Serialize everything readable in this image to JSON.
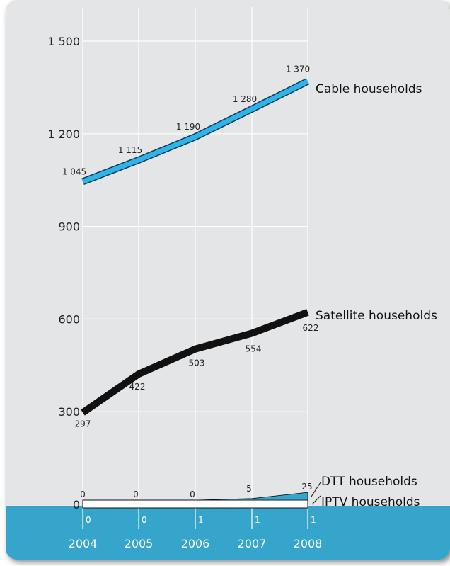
{
  "colors": {
    "background": "#e4e5e6",
    "footer_band": "#36a5cc",
    "cable": "#2fb3e8",
    "satellite": "#111111",
    "dtt": "#36a5cc",
    "iptv": "#ffffff",
    "grid": "#ffffff"
  },
  "chart_data": {
    "type": "line",
    "title": "",
    "xlabel": "",
    "ylabel": "",
    "x": [
      "2004",
      "2005",
      "2006",
      "2007",
      "2008"
    ],
    "ylim": [
      0,
      1500
    ],
    "yticks": [
      0,
      300,
      600,
      900,
      1200,
      1500
    ],
    "ytick_labels": [
      "0",
      "300",
      "600",
      "900",
      "1 200",
      "1 500"
    ],
    "grid": true,
    "series": [
      {
        "name": "Cable households",
        "values": [
          1045,
          1115,
          1190,
          1280,
          1370
        ],
        "labels": [
          "1 045",
          "1 115",
          "1 190",
          "1 280",
          "1 370"
        ]
      },
      {
        "name": "Satellite households",
        "values": [
          297,
          422,
          503,
          554,
          622
        ],
        "labels": [
          "297",
          "422",
          "503",
          "554",
          "622"
        ]
      },
      {
        "name": "DTT households",
        "values": [
          0,
          0,
          0,
          5,
          25
        ],
        "labels": [
          "0",
          "0",
          "0",
          "5",
          "25"
        ]
      },
      {
        "name": "IPTV households",
        "values": [
          0,
          0,
          1,
          1,
          1
        ],
        "labels": [
          "0",
          "0",
          "1",
          "1",
          "1"
        ]
      }
    ]
  }
}
